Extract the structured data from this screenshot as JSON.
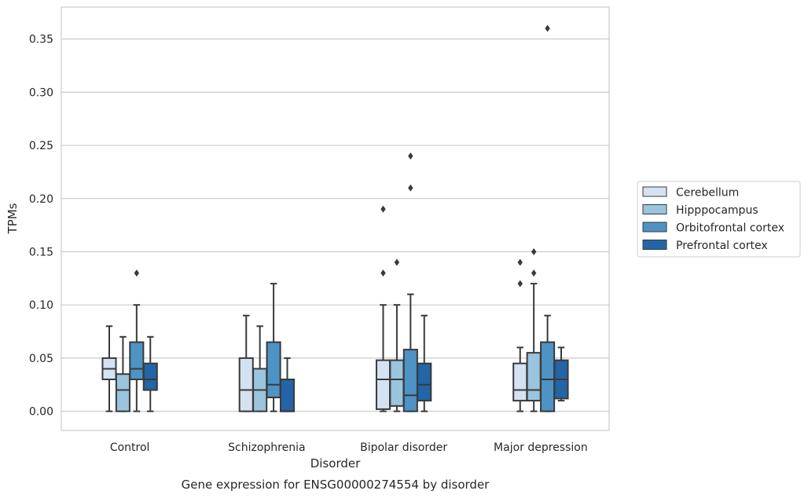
{
  "chart_data": {
    "type": "box",
    "xlabel": "Disorder",
    "ylabel": "TPMs",
    "caption": "Gene expression for ENSG00000274554 by disorder",
    "ylim": [
      -0.018,
      0.38
    ],
    "yticks": [
      "0.00",
      "0.05",
      "0.10",
      "0.15",
      "0.20",
      "0.25",
      "0.30",
      "0.35"
    ],
    "ytick_values": [
      0,
      0.05,
      0.1,
      0.15,
      0.2,
      0.25,
      0.3,
      0.35
    ],
    "grid": "horizontal",
    "legend_position": "right",
    "categories": [
      "Control",
      "Schizophrenia",
      "Bipolar disorder",
      "Major depression"
    ],
    "series": [
      {
        "name": "Cerebellum",
        "color": "#d4e2f1",
        "boxes": [
          {
            "whislo": 0.0,
            "q1": 0.03,
            "med": 0.04,
            "q3": 0.05,
            "whishi": 0.08,
            "fliers": []
          },
          {
            "whislo": 0.0,
            "q1": 0.0,
            "med": 0.02,
            "q3": 0.05,
            "whishi": 0.09,
            "fliers": []
          },
          {
            "whislo": 0.0,
            "q1": 0.002,
            "med": 0.03,
            "q3": 0.048,
            "whishi": 0.1,
            "fliers": [
              0.13,
              0.19
            ]
          },
          {
            "whislo": 0.0,
            "q1": 0.01,
            "med": 0.02,
            "q3": 0.045,
            "whishi": 0.06,
            "fliers": [
              0.12,
              0.14
            ]
          }
        ]
      },
      {
        "name": "Hipppocampus",
        "color": "#9bc4de",
        "boxes": [
          {
            "whislo": 0.0,
            "q1": 0.0,
            "med": 0.02,
            "q3": 0.035,
            "whishi": 0.07,
            "fliers": []
          },
          {
            "whislo": 0.0,
            "q1": 0.0,
            "med": 0.02,
            "q3": 0.04,
            "whishi": 0.08,
            "fliers": []
          },
          {
            "whislo": 0.0,
            "q1": 0.005,
            "med": 0.03,
            "q3": 0.048,
            "whishi": 0.1,
            "fliers": [
              0.14
            ]
          },
          {
            "whislo": 0.0,
            "q1": 0.01,
            "med": 0.02,
            "q3": 0.055,
            "whishi": 0.12,
            "fliers": [
              0.13,
              0.15
            ]
          }
        ]
      },
      {
        "name": "Orbitofrontal cortex",
        "color": "#4d93c5",
        "boxes": [
          {
            "whislo": 0.0,
            "q1": 0.03,
            "med": 0.04,
            "q3": 0.065,
            "whishi": 0.1,
            "fliers": [
              0.13
            ]
          },
          {
            "whislo": 0.0,
            "q1": 0.013,
            "med": 0.025,
            "q3": 0.065,
            "whishi": 0.12,
            "fliers": []
          },
          {
            "whislo": 0.0,
            "q1": 0.0,
            "med": 0.015,
            "q3": 0.058,
            "whishi": 0.11,
            "fliers": [
              0.21,
              0.24
            ]
          },
          {
            "whislo": 0.0,
            "q1": 0.0,
            "med": 0.03,
            "q3": 0.065,
            "whishi": 0.09,
            "fliers": [
              0.36
            ]
          }
        ]
      },
      {
        "name": "Prefrontal cortex",
        "color": "#2365a6",
        "boxes": [
          {
            "whislo": 0.0,
            "q1": 0.02,
            "med": 0.03,
            "q3": 0.045,
            "whishi": 0.07,
            "fliers": []
          },
          {
            "whislo": 0.0,
            "q1": 0.0,
            "med": 0.0,
            "q3": 0.03,
            "whishi": 0.05,
            "fliers": []
          },
          {
            "whislo": 0.0,
            "q1": 0.01,
            "med": 0.025,
            "q3": 0.045,
            "whishi": 0.09,
            "fliers": []
          },
          {
            "whislo": 0.01,
            "q1": 0.012,
            "med": 0.03,
            "q3": 0.048,
            "whishi": 0.06,
            "fliers": []
          }
        ]
      }
    ]
  }
}
